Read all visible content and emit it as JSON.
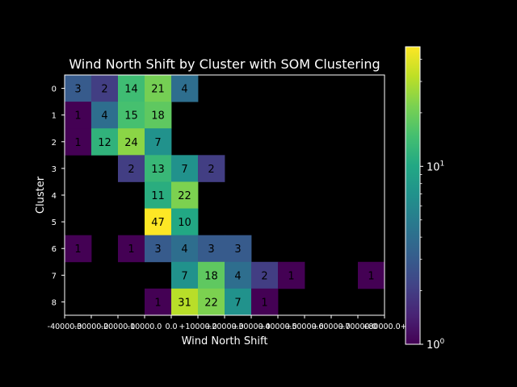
{
  "chart_data": {
    "type": "heatmap",
    "title": "Wind North Shift by Cluster with SOM Clustering",
    "xlabel": "Wind North Shift",
    "ylabel": "Cluster",
    "x_tick_labels": [
      "-40000.0",
      "-30000.0",
      "-20000.0",
      "-10000.0",
      "0.0",
      "+10000.0",
      "+20000.0",
      "+30000.0",
      "+40000.0",
      "+50000.0",
      "+60000.0",
      "+70000.0",
      "+80000.0+"
    ],
    "y_tick_labels": [
      "0",
      "1",
      "2",
      "3",
      "4",
      "5",
      "6",
      "7",
      "8"
    ],
    "colorbar": {
      "scale": "log",
      "range": [
        1,
        47
      ],
      "tick_labels": [
        "10^0",
        "10^1"
      ]
    },
    "cells": [
      {
        "row": 0,
        "col": 0,
        "value": 3
      },
      {
        "row": 0,
        "col": 1,
        "value": 2
      },
      {
        "row": 0,
        "col": 2,
        "value": 14
      },
      {
        "row": 0,
        "col": 3,
        "value": 21
      },
      {
        "row": 0,
        "col": 4,
        "value": 4
      },
      {
        "row": 1,
        "col": 0,
        "value": 1
      },
      {
        "row": 1,
        "col": 1,
        "value": 4
      },
      {
        "row": 1,
        "col": 2,
        "value": 15
      },
      {
        "row": 1,
        "col": 3,
        "value": 18
      },
      {
        "row": 2,
        "col": 0,
        "value": 1
      },
      {
        "row": 2,
        "col": 1,
        "value": 12
      },
      {
        "row": 2,
        "col": 2,
        "value": 24
      },
      {
        "row": 2,
        "col": 3,
        "value": 7
      },
      {
        "row": 3,
        "col": 2,
        "value": 2
      },
      {
        "row": 3,
        "col": 3,
        "value": 13
      },
      {
        "row": 3,
        "col": 4,
        "value": 7
      },
      {
        "row": 3,
        "col": 5,
        "value": 2
      },
      {
        "row": 4,
        "col": 3,
        "value": 11
      },
      {
        "row": 4,
        "col": 4,
        "value": 22
      },
      {
        "row": 5,
        "col": 3,
        "value": 47
      },
      {
        "row": 5,
        "col": 4,
        "value": 10
      },
      {
        "row": 6,
        "col": 0,
        "value": 1
      },
      {
        "row": 6,
        "col": 2,
        "value": 1
      },
      {
        "row": 6,
        "col": 3,
        "value": 3
      },
      {
        "row": 6,
        "col": 4,
        "value": 4
      },
      {
        "row": 6,
        "col": 5,
        "value": 3
      },
      {
        "row": 6,
        "col": 6,
        "value": 3
      },
      {
        "row": 7,
        "col": 4,
        "value": 7
      },
      {
        "row": 7,
        "col": 5,
        "value": 18
      },
      {
        "row": 7,
        "col": 6,
        "value": 4
      },
      {
        "row": 7,
        "col": 7,
        "value": 2
      },
      {
        "row": 7,
        "col": 8,
        "value": 1
      },
      {
        "row": 7,
        "col": 11,
        "value": 1
      },
      {
        "row": 8,
        "col": 3,
        "value": 1
      },
      {
        "row": 8,
        "col": 4,
        "value": 31
      },
      {
        "row": 8,
        "col": 5,
        "value": 22
      },
      {
        "row": 8,
        "col": 6,
        "value": 7
      },
      {
        "row": 8,
        "col": 7,
        "value": 1
      }
    ]
  },
  "colors": {
    "background": "#000000",
    "foreground": "#ffffff",
    "cell_text": "#000000",
    "colormap": "viridis"
  }
}
